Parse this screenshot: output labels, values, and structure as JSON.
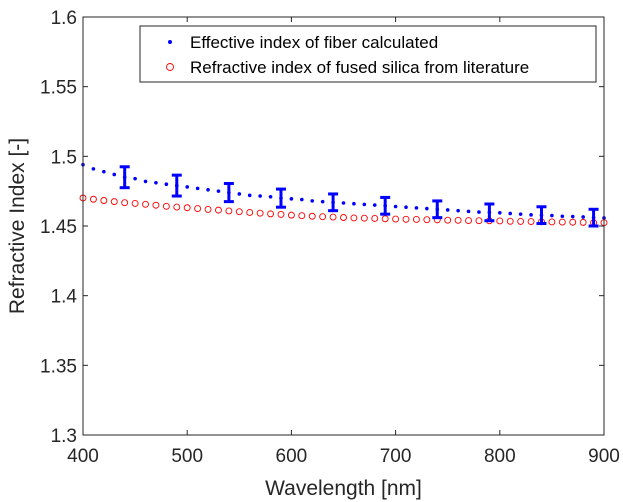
{
  "chart_data": {
    "type": "scatter",
    "title": "",
    "xlabel": "Wavelength [nm]",
    "ylabel": "Refractive Index [-]",
    "xlim": [
      400,
      900
    ],
    "ylim": [
      1.3,
      1.6
    ],
    "xticks": [
      400,
      500,
      600,
      700,
      800,
      900
    ],
    "yticks": [
      1.3,
      1.35,
      1.4,
      1.45,
      1.5,
      1.55,
      1.6
    ],
    "ytick_labels": [
      "1.3",
      "1.35",
      "1.4",
      "1.45",
      "1.5",
      "1.55",
      "1.6"
    ],
    "legend_position": "top-right",
    "grid": false,
    "series": [
      {
        "name": "Effective index of fiber calculated",
        "marker": "dot",
        "color": "#0000ff",
        "x": [
          400,
          410,
          420,
          430,
          440,
          450,
          460,
          470,
          480,
          490,
          500,
          510,
          520,
          530,
          540,
          550,
          560,
          570,
          580,
          590,
          600,
          610,
          620,
          630,
          640,
          650,
          660,
          670,
          680,
          690,
          700,
          710,
          720,
          730,
          740,
          750,
          760,
          770,
          780,
          790,
          800,
          810,
          820,
          830,
          840,
          850,
          860,
          870,
          880,
          890,
          900
        ],
        "y": [
          1.494,
          1.491,
          1.489,
          1.487,
          1.485,
          1.484,
          1.482,
          1.481,
          1.48,
          1.479,
          1.478,
          1.477,
          1.476,
          1.475,
          1.474,
          1.473,
          1.472,
          1.4715,
          1.471,
          1.47,
          1.4695,
          1.469,
          1.468,
          1.4675,
          1.467,
          1.4665,
          1.466,
          1.4655,
          1.465,
          1.4645,
          1.464,
          1.4635,
          1.463,
          1.4625,
          1.462,
          1.4615,
          1.461,
          1.4605,
          1.46,
          1.4598,
          1.4595,
          1.459,
          1.4585,
          1.458,
          1.4578,
          1.4575,
          1.457,
          1.4568,
          1.4565,
          1.456,
          1.4558
        ]
      },
      {
        "name": "Refractive index of fused silica from literature",
        "marker": "circle",
        "color": "#ff0000",
        "x": [
          400,
          410,
          420,
          430,
          440,
          450,
          460,
          470,
          480,
          490,
          500,
          510,
          520,
          530,
          540,
          550,
          560,
          570,
          580,
          590,
          600,
          610,
          620,
          630,
          640,
          650,
          660,
          670,
          680,
          690,
          700,
          710,
          720,
          730,
          740,
          750,
          760,
          770,
          780,
          790,
          800,
          810,
          820,
          830,
          840,
          850,
          860,
          870,
          880,
          890,
          900
        ],
        "y": [
          1.4701,
          1.4692,
          1.4683,
          1.4675,
          1.4667,
          1.4662,
          1.4656,
          1.4649,
          1.4641,
          1.4636,
          1.4631,
          1.4625,
          1.4619,
          1.4614,
          1.4608,
          1.4603,
          1.4597,
          1.4592,
          1.4587,
          1.4583,
          1.4578,
          1.4574,
          1.457,
          1.4567,
          1.4564,
          1.4561,
          1.4558,
          1.4556,
          1.4554,
          1.4552,
          1.455,
          1.4548,
          1.4547,
          1.4545,
          1.4544,
          1.4542,
          1.4541,
          1.4539,
          1.4538,
          1.4537,
          1.4536,
          1.4534,
          1.4533,
          1.4532,
          1.453,
          1.4529,
          1.4528,
          1.4527,
          1.4526,
          1.4525,
          1.4524
        ]
      }
    ],
    "error_bars": {
      "series": "Effective index of fiber calculated",
      "color": "#0000ff",
      "x": [
        440,
        490,
        540,
        590,
        640,
        690,
        740,
        790,
        840,
        890
      ],
      "y": [
        1.485,
        1.479,
        1.474,
        1.47,
        1.467,
        1.4645,
        1.462,
        1.4598,
        1.4578,
        1.456
      ],
      "err": [
        0.0075,
        0.0075,
        0.0065,
        0.0065,
        0.006,
        0.006,
        0.006,
        0.006,
        0.006,
        0.006
      ]
    }
  }
}
